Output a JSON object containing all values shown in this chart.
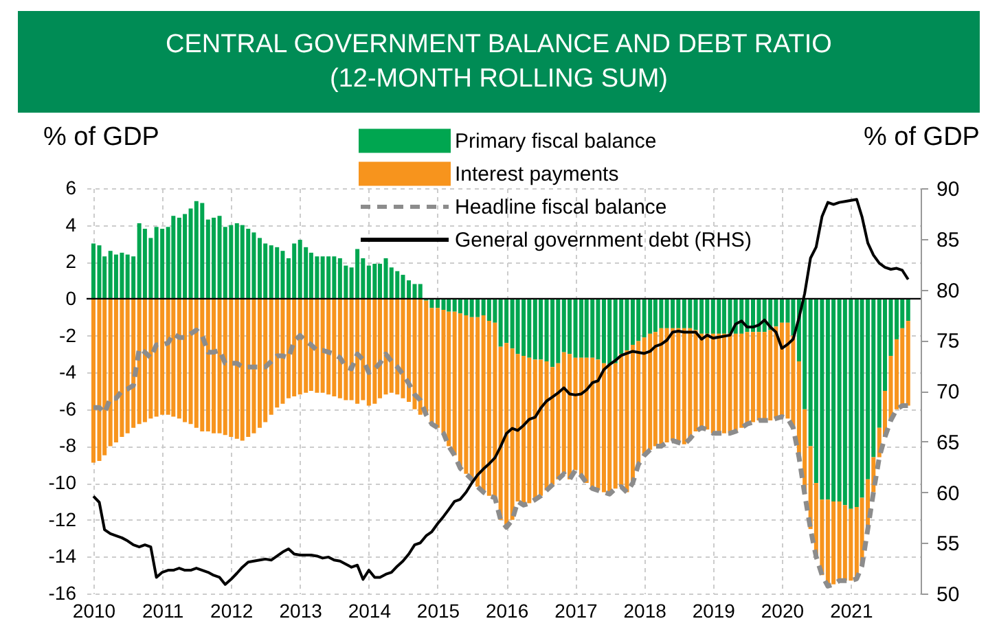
{
  "chart_data": {
    "type": "bar",
    "title": "CENTRAL GOVERNMENT BALANCE AND DEBT RATIO",
    "subtitle": "(12-MONTH ROLLING SUM)",
    "ylabel": "% of GDP",
    "y2label": "% of GDP",
    "stacked": true,
    "grid": true,
    "legend": "top",
    "xlim": [
      "2010-01",
      "2021-12"
    ],
    "xticks": [
      "2010",
      "2011",
      "2012",
      "2013",
      "2014",
      "2015",
      "2016",
      "2017",
      "2018",
      "2019",
      "2020",
      "2021"
    ],
    "ylim": [
      -16,
      6
    ],
    "yticks": [
      -16,
      -14,
      -12,
      -10,
      -8,
      -6,
      -4,
      -2,
      0,
      2,
      4,
      6
    ],
    "y2lim": [
      50,
      90
    ],
    "y2ticks": [
      50,
      55,
      60,
      65,
      70,
      75,
      80,
      85,
      90
    ],
    "ref_lines": [
      {
        "axis": "y",
        "value": 0,
        "color": "#000000"
      }
    ],
    "x": [
      "2010-01",
      "2010-02",
      "2010-03",
      "2010-04",
      "2010-05",
      "2010-06",
      "2010-07",
      "2010-08",
      "2010-09",
      "2010-10",
      "2010-11",
      "2010-12",
      "2011-01",
      "2011-02",
      "2011-03",
      "2011-04",
      "2011-05",
      "2011-06",
      "2011-07",
      "2011-08",
      "2011-09",
      "2011-10",
      "2011-11",
      "2011-12",
      "2012-01",
      "2012-02",
      "2012-03",
      "2012-04",
      "2012-05",
      "2012-06",
      "2012-07",
      "2012-08",
      "2012-09",
      "2012-10",
      "2012-11",
      "2012-12",
      "2013-01",
      "2013-02",
      "2013-03",
      "2013-04",
      "2013-05",
      "2013-06",
      "2013-07",
      "2013-08",
      "2013-09",
      "2013-10",
      "2013-11",
      "2013-12",
      "2014-01",
      "2014-02",
      "2014-03",
      "2014-04",
      "2014-05",
      "2014-06",
      "2014-07",
      "2014-08",
      "2014-09",
      "2014-10",
      "2014-11",
      "2014-12",
      "2015-01",
      "2015-02",
      "2015-03",
      "2015-04",
      "2015-05",
      "2015-06",
      "2015-07",
      "2015-08",
      "2015-09",
      "2015-10",
      "2015-11",
      "2015-12",
      "2016-01",
      "2016-02",
      "2016-03",
      "2016-04",
      "2016-05",
      "2016-06",
      "2016-07",
      "2016-08",
      "2016-09",
      "2016-10",
      "2016-11",
      "2016-12",
      "2017-01",
      "2017-02",
      "2017-03",
      "2017-04",
      "2017-05",
      "2017-06",
      "2017-07",
      "2017-08",
      "2017-09",
      "2017-10",
      "2017-11",
      "2017-12",
      "2018-01",
      "2018-02",
      "2018-03",
      "2018-04",
      "2018-05",
      "2018-06",
      "2018-07",
      "2018-08",
      "2018-09",
      "2018-10",
      "2018-11",
      "2018-12",
      "2019-01",
      "2019-02",
      "2019-03",
      "2019-04",
      "2019-05",
      "2019-06",
      "2019-07",
      "2019-08",
      "2019-09",
      "2019-10",
      "2019-11",
      "2019-12",
      "2020-01",
      "2020-02",
      "2020-03",
      "2020-04",
      "2020-05",
      "2020-06",
      "2020-07",
      "2020-08",
      "2020-09",
      "2020-10",
      "2020-11",
      "2020-12",
      "2021-01",
      "2021-02",
      "2021-03",
      "2021-04",
      "2021-05",
      "2021-06",
      "2021-07",
      "2021-08",
      "2021-09",
      "2021-10",
      "2021-11"
    ],
    "series": [
      {
        "name": "Primary fiscal balance",
        "type": "bar",
        "color": "#00a650",
        "values": [
          3.0,
          2.9,
          2.3,
          2.6,
          2.4,
          2.5,
          2.4,
          2.3,
          4.1,
          3.8,
          3.3,
          3.9,
          3.8,
          3.9,
          4.5,
          4.4,
          4.6,
          4.9,
          5.3,
          5.2,
          4.3,
          4.4,
          4.5,
          3.9,
          4.0,
          4.1,
          4.0,
          3.8,
          3.6,
          3.3,
          3.0,
          2.9,
          2.8,
          2.6,
          2.2,
          3.0,
          3.2,
          2.8,
          2.5,
          2.3,
          2.3,
          2.3,
          2.3,
          2.2,
          1.8,
          1.7,
          2.7,
          2.2,
          1.8,
          1.9,
          1.9,
          2.2,
          1.7,
          1.5,
          1.3,
          1.0,
          0.8,
          0.8,
          -0.1,
          -0.5,
          -0.5,
          -0.6,
          -0.7,
          -0.7,
          -0.8,
          -0.9,
          -1.0,
          -1.0,
          -0.9,
          -1.2,
          -1.3,
          -2.6,
          -2.4,
          -2.7,
          -3.0,
          -3.1,
          -3.2,
          -3.3,
          -3.3,
          -3.4,
          -3.7,
          -3.5,
          -2.9,
          -3.0,
          -3.2,
          -3.2,
          -3.2,
          -3.2,
          -3.3,
          -3.5,
          -3.6,
          -3.5,
          -3.0,
          -2.8,
          -2.5,
          -2.3,
          -2.1,
          -1.9,
          -1.8,
          -1.6,
          -1.6,
          -1.6,
          -1.6,
          -1.6,
          -1.6,
          -1.7,
          -1.9,
          -1.9,
          -1.9,
          -1.9,
          -1.9,
          -1.9,
          -1.9,
          -1.9,
          -1.8,
          -1.8,
          -1.8,
          -1.8,
          -1.7,
          -1.5,
          -1.3,
          -1.3,
          -2.0,
          -3.4,
          -6.0,
          -8.0,
          -10.0,
          -10.9,
          -10.9,
          -11.0,
          -11.0,
          -11.2,
          -11.4,
          -11.3,
          -10.8,
          -9.8,
          -8.6,
          -7.0,
          -5.0,
          -3.1,
          -2.2,
          -1.6,
          -1.2
        ]
      },
      {
        "name": "Interest payments",
        "type": "bar",
        "color": "#f7941d",
        "values": [
          -8.9,
          -8.8,
          -8.5,
          -8.0,
          -7.8,
          -7.5,
          -7.3,
          -7.0,
          -6.8,
          -6.7,
          -6.5,
          -6.4,
          -6.3,
          -6.3,
          -6.4,
          -6.5,
          -6.7,
          -6.8,
          -7.0,
          -7.2,
          -7.2,
          -7.3,
          -7.3,
          -7.4,
          -7.5,
          -7.6,
          -7.7,
          -7.5,
          -7.3,
          -7.0,
          -6.7,
          -6.3,
          -5.9,
          -5.7,
          -5.4,
          -5.3,
          -5.2,
          -5.1,
          -5.0,
          -5.1,
          -5.1,
          -5.2,
          -5.3,
          -5.4,
          -5.5,
          -5.5,
          -5.7,
          -5.5,
          -5.8,
          -5.7,
          -5.4,
          -5.2,
          -5.1,
          -5.2,
          -5.4,
          -5.6,
          -6.0,
          -6.3,
          -6.2,
          -6.3,
          -6.5,
          -6.7,
          -7.3,
          -7.8,
          -8.4,
          -8.6,
          -8.8,
          -9.2,
          -9.6,
          -9.5,
          -9.5,
          -9.4,
          -10.0,
          -9.3,
          -8.0,
          -8.1,
          -7.9,
          -7.6,
          -7.4,
          -7.0,
          -6.4,
          -6.3,
          -6.6,
          -6.8,
          -6.1,
          -6.4,
          -6.8,
          -7.1,
          -7.1,
          -7.0,
          -7.0,
          -6.8,
          -7.2,
          -7.7,
          -7.5,
          -6.7,
          -6.4,
          -6.3,
          -6.2,
          -6.4,
          -6.2,
          -6.1,
          -6.2,
          -6.3,
          -6.0,
          -5.5,
          -5.1,
          -5.2,
          -5.4,
          -5.4,
          -5.4,
          -5.4,
          -5.3,
          -5.1,
          -5.0,
          -4.9,
          -4.8,
          -4.8,
          -4.9,
          -5.0,
          -5.1,
          -5.2,
          -5.0,
          -5.2,
          -4.6,
          -4.5,
          -4.0,
          -4.1,
          -4.7,
          -4.5,
          -4.3,
          -4.1,
          -3.9,
          -3.9,
          -3.7,
          -2.7,
          -1.9,
          -1.6,
          -2.5,
          -3.5,
          -3.8,
          -4.2,
          -4.6
        ]
      },
      {
        "name": "Headline fiscal balance",
        "type": "line",
        "line_style": "dashed",
        "color": "#8c8c8c",
        "values": [
          -5.9,
          -5.9,
          -6.2,
          -5.4,
          -5.4,
          -5.0,
          -4.9,
          -4.7,
          -2.7,
          -2.9,
          -3.2,
          -2.5,
          -2.5,
          -2.4,
          -1.9,
          -2.1,
          -2.1,
          -1.9,
          -1.7,
          -2.0,
          -2.9,
          -2.9,
          -2.8,
          -3.5,
          -3.5,
          -3.5,
          -3.7,
          -3.7,
          -3.7,
          -3.7,
          -3.7,
          -3.4,
          -3.1,
          -3.1,
          -3.2,
          -2.3,
          -2.0,
          -2.3,
          -2.5,
          -2.8,
          -2.8,
          -2.9,
          -3.0,
          -3.2,
          -3.7,
          -3.8,
          -3.0,
          -3.3,
          -4.0,
          -3.8,
          -3.5,
          -3.0,
          -3.4,
          -3.7,
          -4.1,
          -4.6,
          -5.2,
          -5.5,
          -6.3,
          -6.8,
          -7.0,
          -7.3,
          -8.0,
          -8.5,
          -9.2,
          -9.5,
          -9.8,
          -10.2,
          -10.5,
          -10.7,
          -10.8,
          -12.0,
          -12.4,
          -12.0,
          -11.0,
          -11.2,
          -11.1,
          -10.9,
          -10.7,
          -10.4,
          -10.1,
          -9.8,
          -9.5,
          -9.8,
          -9.3,
          -9.6,
          -10.0,
          -10.3,
          -10.4,
          -10.5,
          -10.6,
          -10.3,
          -10.2,
          -10.5,
          -10.0,
          -9.0,
          -8.5,
          -8.2,
          -8.0,
          -8.0,
          -7.8,
          -7.7,
          -7.8,
          -7.9,
          -7.6,
          -7.2,
          -7.0,
          -7.1,
          -7.3,
          -7.3,
          -7.3,
          -7.3,
          -7.2,
          -7.0,
          -6.8,
          -6.7,
          -6.6,
          -6.6,
          -6.6,
          -6.5,
          -6.4,
          -6.5,
          -7.0,
          -8.6,
          -10.6,
          -12.5,
          -14.0,
          -15.0,
          -15.6,
          -15.5,
          -15.3,
          -15.3,
          -15.3,
          -15.2,
          -14.5,
          -12.5,
          -10.5,
          -8.6,
          -7.5,
          -6.6,
          -6.0,
          -5.8,
          -5.8
        ]
      },
      {
        "name": "General government debt (RHS)",
        "type": "line",
        "axis": "y2",
        "line_style": "solid",
        "color": "#000000",
        "values": [
          59.6,
          59.0,
          56.3,
          55.9,
          55.7,
          55.5,
          55.2,
          54.8,
          54.6,
          54.8,
          54.6,
          51.6,
          52.1,
          52.3,
          52.3,
          52.5,
          52.3,
          52.3,
          52.5,
          52.3,
          52.1,
          51.8,
          51.6,
          50.9,
          51.4,
          52.0,
          52.6,
          53.1,
          53.2,
          53.3,
          53.4,
          53.3,
          53.7,
          54.1,
          54.4,
          53.9,
          53.8,
          53.8,
          53.8,
          53.7,
          53.5,
          53.6,
          53.3,
          53.2,
          52.9,
          52.6,
          52.8,
          51.4,
          52.3,
          51.6,
          51.6,
          51.9,
          52.1,
          52.7,
          53.2,
          53.9,
          54.8,
          55.0,
          55.7,
          56.1,
          56.9,
          57.6,
          58.3,
          59.1,
          59.3,
          60.0,
          60.9,
          61.7,
          62.3,
          62.8,
          63.4,
          64.5,
          65.8,
          66.3,
          66.1,
          66.6,
          67.2,
          67.4,
          68.3,
          69.0,
          69.4,
          69.8,
          70.3,
          69.7,
          69.6,
          69.7,
          70.1,
          70.8,
          71.0,
          72.1,
          72.6,
          73.0,
          73.5,
          73.7,
          73.9,
          73.8,
          73.7,
          73.9,
          74.4,
          74.6,
          75.0,
          75.8,
          75.9,
          75.8,
          75.8,
          75.8,
          75.1,
          75.5,
          75.2,
          75.3,
          75.4,
          75.5,
          76.6,
          76.9,
          76.3,
          76.3,
          76.5,
          77.0,
          76.3,
          75.8,
          74.2,
          74.6,
          75.1,
          77.2,
          79.6,
          83.1,
          84.2,
          87.2,
          88.6,
          88.4,
          88.6,
          88.7,
          88.8,
          88.9,
          87.2,
          84.6,
          83.4,
          82.6,
          82.2,
          82.0,
          82.1,
          81.9,
          81.0
        ]
      }
    ]
  }
}
